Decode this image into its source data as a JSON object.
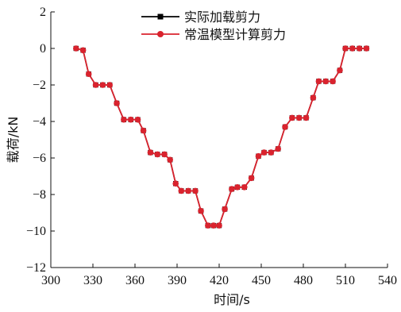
{
  "chart_data": {
    "type": "line",
    "title": "",
    "xlabel": "时间/s",
    "ylabel": "载荷/kN",
    "xlim": [
      300,
      540
    ],
    "ylim": [
      -12,
      2
    ],
    "xticks": [
      300,
      330,
      360,
      390,
      420,
      450,
      480,
      510,
      540
    ],
    "yticks": [
      2,
      0,
      -2,
      -4,
      -6,
      -8,
      -10,
      -12
    ],
    "grid": false,
    "legend_position": "top-center",
    "series": [
      {
        "name": "实际加载剪力",
        "color": "#000000",
        "marker": "square",
        "x": [
          318,
          323,
          327,
          332,
          337,
          342,
          347,
          352,
          357,
          362,
          366,
          371,
          376,
          381,
          385,
          389,
          393,
          398,
          403,
          407,
          412,
          416,
          420,
          424,
          429,
          433,
          438,
          443,
          448,
          452,
          457,
          462,
          467,
          472,
          477,
          482,
          487,
          491,
          496,
          501,
          506,
          510,
          515,
          520,
          525
        ],
        "y": [
          0.0,
          -0.1,
          -1.4,
          -2.0,
          -2.0,
          -2.0,
          -3.0,
          -3.9,
          -3.9,
          -3.9,
          -4.5,
          -5.7,
          -5.8,
          -5.8,
          -6.1,
          -7.4,
          -7.8,
          -7.8,
          -7.8,
          -8.9,
          -9.7,
          -9.7,
          -9.7,
          -8.8,
          -7.7,
          -7.6,
          -7.6,
          -7.1,
          -5.9,
          -5.7,
          -5.7,
          -5.5,
          -4.3,
          -3.8,
          -3.8,
          -3.8,
          -2.7,
          -1.8,
          -1.8,
          -1.8,
          -1.2,
          0.0,
          0.0,
          0.0,
          0.0
        ]
      },
      {
        "name": "常温模型计算剪力",
        "color": "#d9232e",
        "marker": "circle",
        "x": [
          318,
          323,
          327,
          332,
          337,
          342,
          347,
          352,
          357,
          362,
          366,
          371,
          376,
          381,
          385,
          389,
          393,
          398,
          403,
          407,
          412,
          416,
          420,
          424,
          429,
          433,
          438,
          443,
          448,
          452,
          457,
          462,
          467,
          472,
          477,
          482,
          487,
          491,
          496,
          501,
          506,
          510,
          515,
          520,
          525
        ],
        "y": [
          0.0,
          -0.1,
          -1.4,
          -2.0,
          -2.0,
          -2.0,
          -3.0,
          -3.9,
          -3.9,
          -3.9,
          -4.5,
          -5.7,
          -5.8,
          -5.8,
          -6.1,
          -7.4,
          -7.8,
          -7.8,
          -7.8,
          -8.9,
          -9.7,
          -9.7,
          -9.7,
          -8.8,
          -7.7,
          -7.6,
          -7.6,
          -7.1,
          -5.9,
          -5.7,
          -5.7,
          -5.5,
          -4.3,
          -3.8,
          -3.8,
          -3.8,
          -2.7,
          -1.8,
          -1.8,
          -1.8,
          -1.2,
          0.0,
          0.0,
          0.0,
          0.0
        ]
      }
    ]
  }
}
